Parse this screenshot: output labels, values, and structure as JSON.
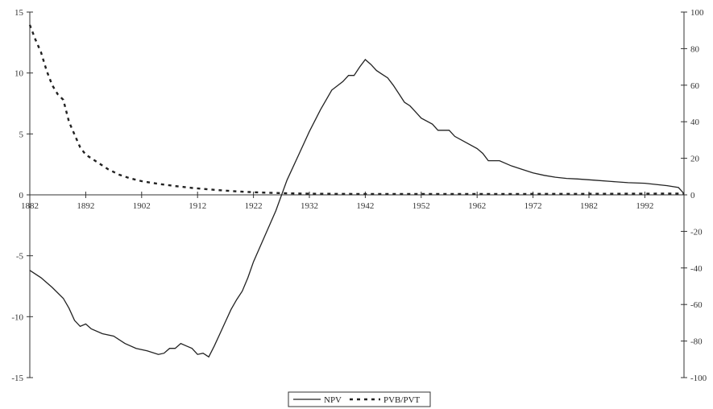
{
  "chart_data": {
    "type": "line",
    "title": "",
    "xlabel": "",
    "ylabel_left": "",
    "ylabel_right": "",
    "grid": false,
    "legend_position": "bottom-center",
    "x_ticks": [
      "1882",
      "1892",
      "1902",
      "1912",
      "1922",
      "1932",
      "1942",
      "1952",
      "1962",
      "1972",
      "1982",
      "1992"
    ],
    "x_range": [
      1882,
      1999
    ],
    "y_left": {
      "range": [
        -15,
        15
      ],
      "ticks": [
        "15",
        "10",
        "5",
        "0",
        "-5",
        "-10",
        "-15"
      ]
    },
    "y_right": {
      "range": [
        -100,
        100
      ],
      "ticks": [
        "100",
        "80",
        "60",
        "40",
        "20",
        "0",
        "-20",
        "-40",
        "-60",
        "-80",
        "-100"
      ]
    },
    "colors": {
      "line": "#222222",
      "axis": "#333333"
    },
    "series": [
      {
        "name": "NPV",
        "axis": "left",
        "style": "solid",
        "points": [
          [
            1882,
            -6.2
          ],
          [
            1884,
            -6.8
          ],
          [
            1886,
            -7.6
          ],
          [
            1888,
            -8.5
          ],
          [
            1889,
            -9.3
          ],
          [
            1890,
            -10.3
          ],
          [
            1891,
            -10.8
          ],
          [
            1892,
            -10.6
          ],
          [
            1893,
            -11.0
          ],
          [
            1895,
            -11.4
          ],
          [
            1897,
            -11.6
          ],
          [
            1899,
            -12.2
          ],
          [
            1901,
            -12.6
          ],
          [
            1903,
            -12.8
          ],
          [
            1905,
            -13.1
          ],
          [
            1906,
            -13.0
          ],
          [
            1907,
            -12.6
          ],
          [
            1908,
            -12.6
          ],
          [
            1909,
            -12.2
          ],
          [
            1910,
            -12.4
          ],
          [
            1911,
            -12.6
          ],
          [
            1912,
            -13.1
          ],
          [
            1913,
            -13.0
          ],
          [
            1914,
            -13.3
          ],
          [
            1915,
            -12.4
          ],
          [
            1916,
            -11.4
          ],
          [
            1917,
            -10.4
          ],
          [
            1918,
            -9.4
          ],
          [
            1919,
            -8.6
          ],
          [
            1920,
            -7.9
          ],
          [
            1921,
            -6.8
          ],
          [
            1922,
            -5.5
          ],
          [
            1924,
            -3.4
          ],
          [
            1926,
            -1.3
          ],
          [
            1928,
            1.2
          ],
          [
            1930,
            3.2
          ],
          [
            1932,
            5.2
          ],
          [
            1934,
            7.0
          ],
          [
            1936,
            8.6
          ],
          [
            1938,
            9.3
          ],
          [
            1939,
            9.8
          ],
          [
            1940,
            9.8
          ],
          [
            1941,
            10.5
          ],
          [
            1942,
            11.1
          ],
          [
            1943,
            10.7
          ],
          [
            1944,
            10.2
          ],
          [
            1945,
            9.9
          ],
          [
            1946,
            9.6
          ],
          [
            1947,
            9.0
          ],
          [
            1948,
            8.3
          ],
          [
            1949,
            7.6
          ],
          [
            1950,
            7.3
          ],
          [
            1951,
            6.8
          ],
          [
            1952,
            6.3
          ],
          [
            1954,
            5.8
          ],
          [
            1955,
            5.3
          ],
          [
            1957,
            5.3
          ],
          [
            1958,
            4.8
          ],
          [
            1960,
            4.3
          ],
          [
            1962,
            3.8
          ],
          [
            1963,
            3.4
          ],
          [
            1964,
            2.8
          ],
          [
            1966,
            2.8
          ],
          [
            1968,
            2.4
          ],
          [
            1970,
            2.1
          ],
          [
            1972,
            1.8
          ],
          [
            1974,
            1.6
          ],
          [
            1976,
            1.45
          ],
          [
            1978,
            1.35
          ],
          [
            1980,
            1.3
          ],
          [
            1983,
            1.2
          ],
          [
            1986,
            1.1
          ],
          [
            1989,
            1.0
          ],
          [
            1992,
            0.95
          ],
          [
            1994,
            0.85
          ],
          [
            1996,
            0.75
          ],
          [
            1998,
            0.6
          ],
          [
            1999,
            0.1
          ]
        ]
      },
      {
        "name": "PVB/PVT",
        "axis": "right",
        "style": "dashed",
        "points": [
          [
            1882,
            93
          ],
          [
            1883,
            85
          ],
          [
            1884,
            78
          ],
          [
            1885,
            68
          ],
          [
            1886,
            60
          ],
          [
            1887,
            55
          ],
          [
            1888,
            52
          ],
          [
            1889,
            40
          ],
          [
            1890,
            33
          ],
          [
            1891,
            26
          ],
          [
            1892,
            22
          ],
          [
            1894,
            18
          ],
          [
            1896,
            14
          ],
          [
            1898,
            11
          ],
          [
            1900,
            9
          ],
          [
            1902,
            7.5
          ],
          [
            1905,
            6
          ],
          [
            1908,
            4.8
          ],
          [
            1911,
            3.8
          ],
          [
            1914,
            3
          ],
          [
            1917,
            2.3
          ],
          [
            1920,
            1.7
          ],
          [
            1923,
            1.3
          ],
          [
            1926,
            1
          ],
          [
            1929,
            0.8
          ],
          [
            1932,
            0.6
          ],
          [
            1940,
            0.5
          ],
          [
            1950,
            0.45
          ],
          [
            1960,
            0.45
          ],
          [
            1970,
            0.5
          ],
          [
            1980,
            0.55
          ],
          [
            1990,
            0.6
          ],
          [
            1999,
            0.7
          ]
        ]
      }
    ]
  },
  "legend": {
    "items": [
      {
        "label": "NPV",
        "style": "solid"
      },
      {
        "label": "PVB/PVT",
        "style": "dashed"
      }
    ]
  }
}
